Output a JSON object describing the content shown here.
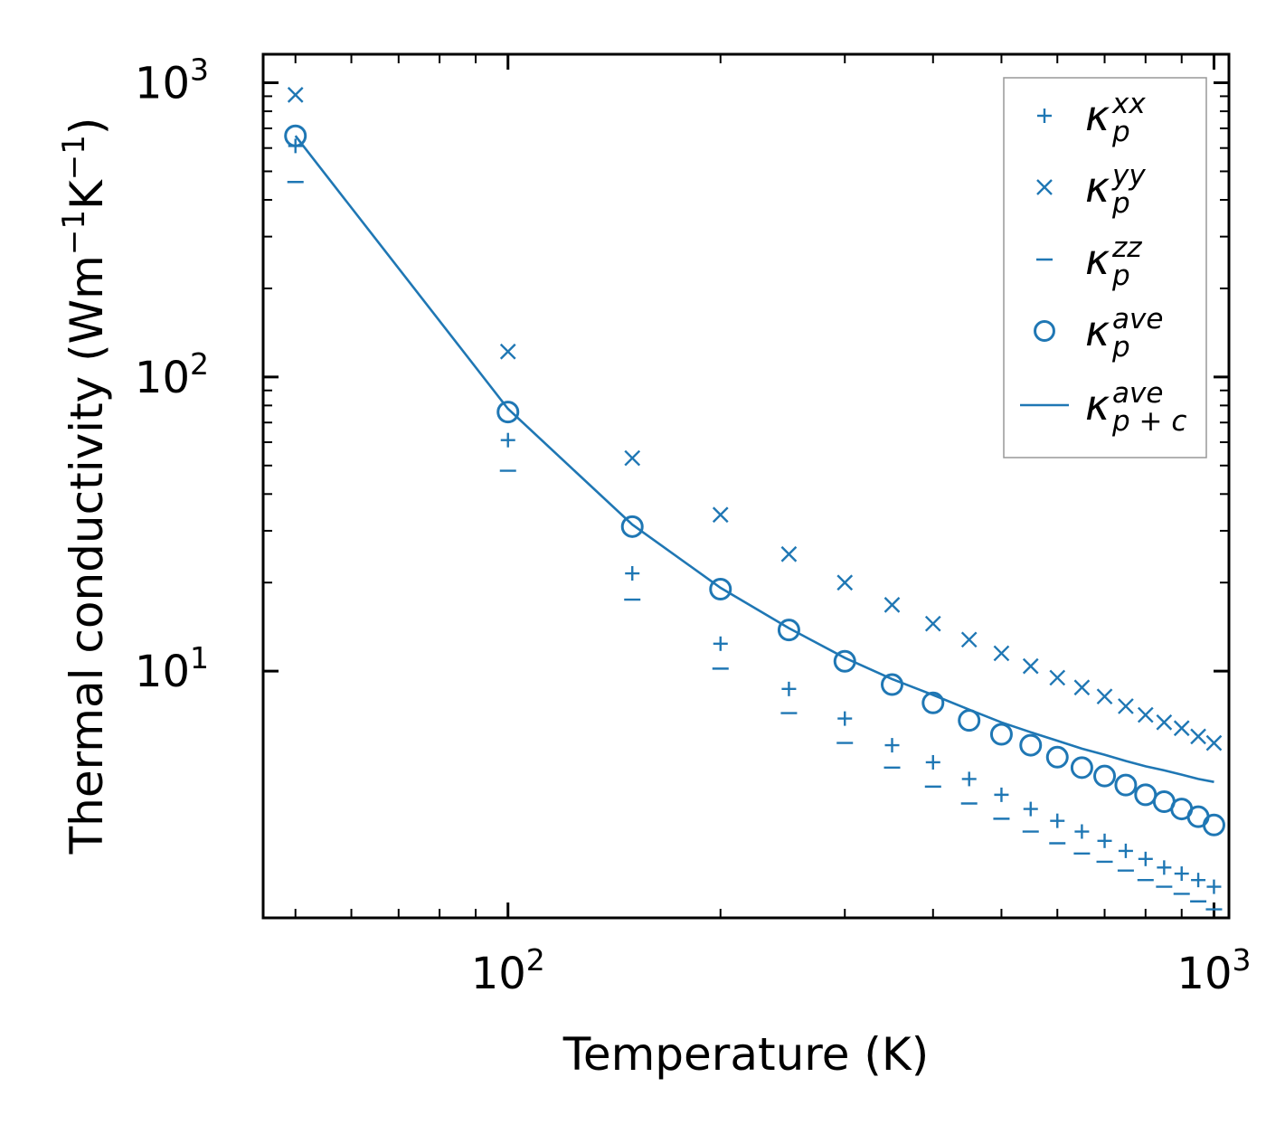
{
  "chart_data": {
    "type": "scatter",
    "xscale": "log",
    "yscale": "log",
    "xlim": [
      45,
      1050
    ],
    "ylim": [
      1.45,
      1250
    ],
    "xlabel": "Temperature (K)",
    "ylabel": {
      "base": "Thermal conductivity (Wm",
      "exp1": "−1",
      "mid": "K",
      "exp2": "−1",
      "end": ")"
    },
    "x_ticks": [
      {
        "value": 100,
        "base": "10",
        "exp": "2"
      },
      {
        "value": 1000,
        "base": "10",
        "exp": "3"
      }
    ],
    "y_ticks": [
      {
        "value": 10,
        "base": "10",
        "exp": "1"
      },
      {
        "value": 100,
        "base": "10",
        "exp": "2"
      },
      {
        "value": 1000,
        "base": "10",
        "exp": "3"
      }
    ],
    "x": [
      50,
      100,
      150,
      200,
      250,
      300,
      350,
      400,
      450,
      500,
      550,
      600,
      650,
      700,
      750,
      800,
      850,
      900,
      950,
      1000
    ],
    "color": "#1f77b4",
    "series": [
      {
        "name": "kappa_p_xx",
        "marker": "plus",
        "label_base": "κ",
        "label_sub": "p",
        "label_sup": "xx",
        "values": [
          610,
          61,
          21.5,
          12.4,
          8.7,
          6.9,
          5.6,
          4.9,
          4.3,
          3.8,
          3.4,
          3.1,
          2.85,
          2.65,
          2.45,
          2.3,
          2.15,
          2.05,
          1.95,
          1.85
        ]
      },
      {
        "name": "kappa_p_yy",
        "marker": "x",
        "label_base": "κ",
        "label_sub": "p",
        "label_sup": "yy",
        "values": [
          910,
          122,
          53,
          34,
          25,
          20,
          16.8,
          14.5,
          12.8,
          11.5,
          10.4,
          9.5,
          8.8,
          8.2,
          7.6,
          7.1,
          6.7,
          6.4,
          6.0,
          5.7
        ]
      },
      {
        "name": "kappa_p_zz",
        "marker": "minus",
        "label_base": "κ",
        "label_sub": "p",
        "label_sup": "zz",
        "values": [
          460,
          48,
          17.5,
          10.2,
          7.2,
          5.7,
          4.7,
          4.05,
          3.55,
          3.15,
          2.85,
          2.6,
          2.4,
          2.25,
          2.1,
          1.95,
          1.85,
          1.75,
          1.65,
          1.55
        ]
      },
      {
        "name": "kappa_p_ave",
        "marker": "circle",
        "label_base": "κ",
        "label_sub": "p",
        "label_sup": "ave",
        "values": [
          660,
          76,
          31,
          19,
          13.8,
          10.8,
          9.0,
          7.8,
          6.8,
          6.1,
          5.6,
          5.1,
          4.7,
          4.4,
          4.1,
          3.8,
          3.6,
          3.4,
          3.2,
          3.0
        ]
      },
      {
        "name": "kappa_pc_ave",
        "marker": "line",
        "label_base": "κ",
        "label_sub": "p + c",
        "label_sup": "ave",
        "values": [
          660,
          78,
          31.5,
          19.2,
          14.0,
          11.1,
          9.4,
          8.3,
          7.4,
          6.7,
          6.2,
          5.8,
          5.45,
          5.2,
          4.95,
          4.75,
          4.6,
          4.45,
          4.3,
          4.2
        ]
      }
    ],
    "legend_position": "top-right",
    "grid": false
  }
}
